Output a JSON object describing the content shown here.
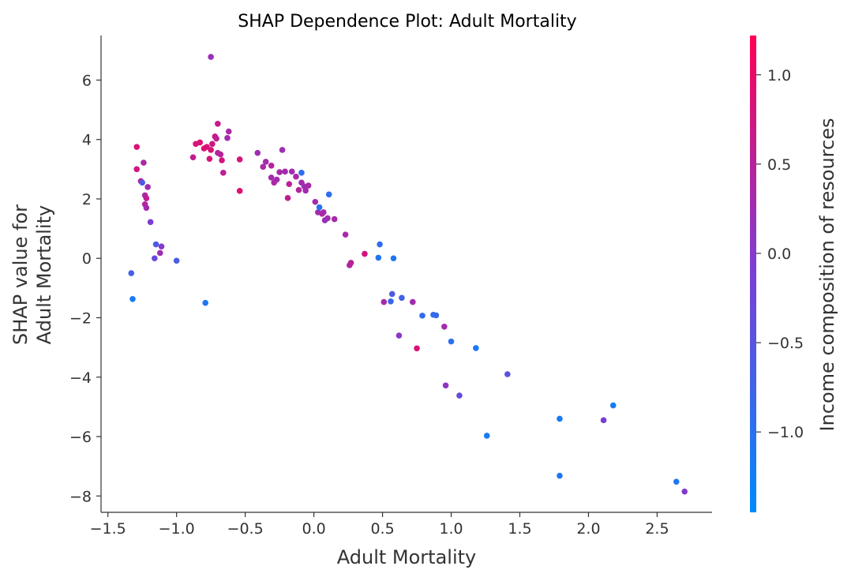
{
  "chart_data": {
    "type": "scatter",
    "title": "SHAP Dependence Plot: Adult Mortality",
    "xlabel": "Adult Mortality",
    "ylabel_lines": [
      "SHAP value for",
      "Adult Mortality"
    ],
    "xlim": [
      -1.55,
      2.9
    ],
    "ylim": [
      -8.55,
      7.5
    ],
    "x_ticks": [
      {
        "value": -1.5,
        "label": "−1.5"
      },
      {
        "value": -1.0,
        "label": "−1.0"
      },
      {
        "value": -0.5,
        "label": "−0.5"
      },
      {
        "value": 0.0,
        "label": "0.0"
      },
      {
        "value": 0.5,
        "label": "0.5"
      },
      {
        "value": 1.0,
        "label": "1.0"
      },
      {
        "value": 1.5,
        "label": "1.5"
      },
      {
        "value": 2.0,
        "label": "2.0"
      },
      {
        "value": 2.5,
        "label": "2.5"
      }
    ],
    "y_ticks": [
      {
        "value": 6,
        "label": "6"
      },
      {
        "value": 4,
        "label": "4"
      },
      {
        "value": 2,
        "label": "2"
      },
      {
        "value": 0,
        "label": "0"
      },
      {
        "value": -2,
        "label": "−2"
      },
      {
        "value": -4,
        "label": "−4"
      },
      {
        "value": -6,
        "label": "−6"
      },
      {
        "value": -8,
        "label": "−8"
      }
    ],
    "grid": false,
    "colorbar": {
      "label": "Income composition of resources",
      "range": [
        -1.45,
        1.22
      ],
      "colors": [
        "#008afb",
        "#7a3fd6",
        "#ff0052"
      ],
      "ticks": [
        {
          "value": 1.0,
          "label": "1.0"
        },
        {
          "value": 0.5,
          "label": "0.5"
        },
        {
          "value": 0.0,
          "label": "0.0"
        },
        {
          "value": -0.5,
          "label": "−0.5"
        },
        {
          "value": -1.0,
          "label": "−1.0"
        }
      ]
    },
    "points": [
      {
        "x": -0.75,
        "y": 6.78,
        "c": 0.2
      },
      {
        "x": -1.29,
        "y": 3.75,
        "c": 0.85
      },
      {
        "x": -1.29,
        "y": 3.0,
        "c": 0.75
      },
      {
        "x": -1.26,
        "y": 2.6,
        "c": 0.45
      },
      {
        "x": -1.25,
        "y": 2.55,
        "c": -0.6
      },
      {
        "x": -1.24,
        "y": 3.22,
        "c": 0.35
      },
      {
        "x": -1.23,
        "y": 2.12,
        "c": 0.4
      },
      {
        "x": -1.22,
        "y": 2.02,
        "c": 0.55
      },
      {
        "x": -1.23,
        "y": 1.82,
        "c": 0.45
      },
      {
        "x": -1.22,
        "y": 1.7,
        "c": 0.3
      },
      {
        "x": -1.21,
        "y": 2.4,
        "c": 0.3
      },
      {
        "x": -1.19,
        "y": 1.22,
        "c": -0.1
      },
      {
        "x": -1.16,
        "y": 0.0,
        "c": -0.3
      },
      {
        "x": -1.15,
        "y": 0.47,
        "c": -0.6
      },
      {
        "x": -1.12,
        "y": 0.18,
        "c": 0.25
      },
      {
        "x": -1.11,
        "y": 0.4,
        "c": 0.0
      },
      {
        "x": -1.0,
        "y": -0.08,
        "c": -0.65
      },
      {
        "x": -1.33,
        "y": -0.5,
        "c": -0.7
      },
      {
        "x": -1.32,
        "y": -1.37,
        "c": -1.2
      },
      {
        "x": -0.79,
        "y": -1.5,
        "c": -1.1
      },
      {
        "x": -0.88,
        "y": 3.4,
        "c": 0.6
      },
      {
        "x": -0.86,
        "y": 3.85,
        "c": 0.8
      },
      {
        "x": -0.83,
        "y": 3.9,
        "c": 0.85
      },
      {
        "x": -0.8,
        "y": 3.7,
        "c": 0.9
      },
      {
        "x": -0.78,
        "y": 3.75,
        "c": 0.85
      },
      {
        "x": -0.76,
        "y": 3.35,
        "c": 0.8
      },
      {
        "x": -0.75,
        "y": 3.65,
        "c": 0.85
      },
      {
        "x": -0.74,
        "y": 3.85,
        "c": 0.75
      },
      {
        "x": -0.72,
        "y": 4.1,
        "c": 0.6
      },
      {
        "x": -0.71,
        "y": 4.03,
        "c": 0.55
      },
      {
        "x": -0.7,
        "y": 4.53,
        "c": 0.65
      },
      {
        "x": -0.7,
        "y": 3.55,
        "c": 0.4
      },
      {
        "x": -0.68,
        "y": 3.5,
        "c": 0.5
      },
      {
        "x": -0.67,
        "y": 3.3,
        "c": 0.75
      },
      {
        "x": -0.66,
        "y": 2.88,
        "c": 0.55
      },
      {
        "x": -0.63,
        "y": 4.05,
        "c": 0.3
      },
      {
        "x": -0.62,
        "y": 4.27,
        "c": 0.35
      },
      {
        "x": -0.54,
        "y": 3.33,
        "c": 0.8
      },
      {
        "x": -0.54,
        "y": 2.27,
        "c": 0.9
      },
      {
        "x": -0.41,
        "y": 3.55,
        "c": 0.25
      },
      {
        "x": -0.37,
        "y": 3.08,
        "c": 0.35
      },
      {
        "x": -0.35,
        "y": 3.25,
        "c": 0.3
      },
      {
        "x": -0.31,
        "y": 3.12,
        "c": 0.45
      },
      {
        "x": -0.31,
        "y": 2.72,
        "c": 0.3
      },
      {
        "x": -0.29,
        "y": 2.55,
        "c": 0.4
      },
      {
        "x": -0.27,
        "y": 2.65,
        "c": 0.3
      },
      {
        "x": -0.25,
        "y": 2.9,
        "c": 0.35
      },
      {
        "x": -0.23,
        "y": 3.65,
        "c": 0.25
      },
      {
        "x": -0.21,
        "y": 2.92,
        "c": 0.3
      },
      {
        "x": -0.19,
        "y": 2.03,
        "c": 0.6
      },
      {
        "x": -0.18,
        "y": 2.5,
        "c": 0.55
      },
      {
        "x": -0.16,
        "y": 2.92,
        "c": 0.3
      },
      {
        "x": -0.13,
        "y": 2.75,
        "c": 0.35
      },
      {
        "x": -0.11,
        "y": 2.3,
        "c": 0.45
      },
      {
        "x": -0.09,
        "y": 2.88,
        "c": -0.95
      },
      {
        "x": -0.09,
        "y": 2.55,
        "c": 0.3
      },
      {
        "x": -0.07,
        "y": 2.42,
        "c": 0.2
      },
      {
        "x": -0.06,
        "y": 2.28,
        "c": 0.3
      },
      {
        "x": -0.04,
        "y": 2.45,
        "c": 0.4
      },
      {
        "x": 0.01,
        "y": 1.9,
        "c": 0.3
      },
      {
        "x": 0.03,
        "y": 1.55,
        "c": 0.25
      },
      {
        "x": 0.04,
        "y": 1.72,
        "c": -1.0
      },
      {
        "x": 0.06,
        "y": 1.5,
        "c": 0.45
      },
      {
        "x": 0.07,
        "y": 1.55,
        "c": 0.3
      },
      {
        "x": 0.08,
        "y": 1.28,
        "c": 0.2
      },
      {
        "x": 0.1,
        "y": 1.35,
        "c": 0.25
      },
      {
        "x": 0.11,
        "y": 2.15,
        "c": -0.95
      },
      {
        "x": 0.15,
        "y": 1.32,
        "c": 0.35
      },
      {
        "x": 0.23,
        "y": 0.8,
        "c": 0.35
      },
      {
        "x": 0.26,
        "y": -0.23,
        "c": 0.4
      },
      {
        "x": 0.27,
        "y": -0.15,
        "c": 0.5
      },
      {
        "x": 0.37,
        "y": 0.15,
        "c": 0.75
      },
      {
        "x": 0.47,
        "y": 0.02,
        "c": -1.1
      },
      {
        "x": 0.48,
        "y": 0.47,
        "c": -0.9
      },
      {
        "x": 0.51,
        "y": -1.47,
        "c": 0.3
      },
      {
        "x": 0.56,
        "y": -1.45,
        "c": -0.85
      },
      {
        "x": 0.57,
        "y": -1.2,
        "c": -0.6
      },
      {
        "x": 0.58,
        "y": 0.0,
        "c": -1.1
      },
      {
        "x": 0.62,
        "y": -2.6,
        "c": 0.05
      },
      {
        "x": 0.64,
        "y": -1.33,
        "c": -0.7
      },
      {
        "x": 0.72,
        "y": -1.47,
        "c": 0.3
      },
      {
        "x": 0.75,
        "y": -3.03,
        "c": 0.85
      },
      {
        "x": 0.79,
        "y": -1.93,
        "c": -0.9
      },
      {
        "x": 0.87,
        "y": -1.9,
        "c": -0.9
      },
      {
        "x": 0.89,
        "y": -1.92,
        "c": -0.85
      },
      {
        "x": 0.95,
        "y": -2.3,
        "c": 0.3
      },
      {
        "x": 0.96,
        "y": -4.28,
        "c": 0.1
      },
      {
        "x": 1.0,
        "y": -2.8,
        "c": -1.0
      },
      {
        "x": 1.06,
        "y": -4.62,
        "c": -0.35
      },
      {
        "x": 1.18,
        "y": -3.02,
        "c": -1.15
      },
      {
        "x": 1.26,
        "y": -5.97,
        "c": -1.2
      },
      {
        "x": 1.41,
        "y": -3.9,
        "c": -0.45
      },
      {
        "x": 1.79,
        "y": -5.4,
        "c": -1.15
      },
      {
        "x": 1.79,
        "y": -7.32,
        "c": -1.1
      },
      {
        "x": 2.11,
        "y": -5.45,
        "c": -0.1
      },
      {
        "x": 2.18,
        "y": -4.95,
        "c": -1.15
      },
      {
        "x": 2.64,
        "y": -7.52,
        "c": -1.1
      },
      {
        "x": 2.7,
        "y": -7.85,
        "c": 0.0
      }
    ]
  }
}
